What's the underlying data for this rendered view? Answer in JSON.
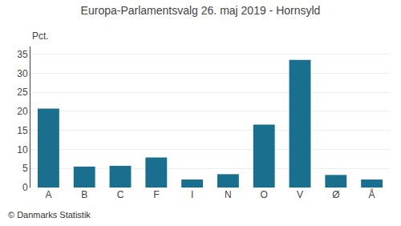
{
  "chart_data": {
    "type": "bar",
    "title": "Europa-Parlamentsvalg 26. maj 2019 - Hornsyld",
    "ylabel": "Pct.",
    "annotations": [
      "© Danmarks Statistik"
    ],
    "categories": [
      "A",
      "B",
      "C",
      "F",
      "I",
      "N",
      "O",
      "V",
      "Ø",
      "Å"
    ],
    "values": [
      20.7,
      5.5,
      5.7,
      7.9,
      2.1,
      3.5,
      16.5,
      33.5,
      3.3,
      2.1
    ],
    "color": "#1a6e8e",
    "ylim": [
      0,
      37
    ],
    "yticks": [
      0,
      5,
      10,
      15,
      20,
      25,
      30,
      35
    ],
    "grid": true
  }
}
